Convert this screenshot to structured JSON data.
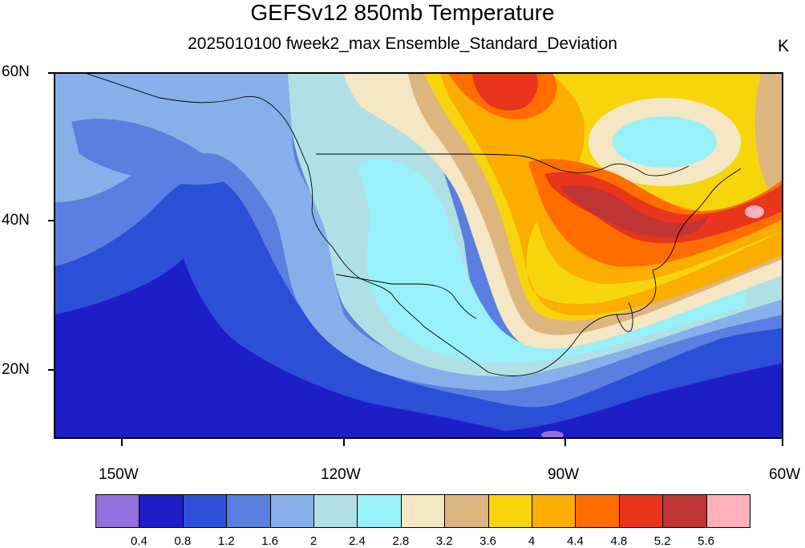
{
  "title": "GEFSv12 850mb Temperature",
  "subtitle": "2025010100 fweek2_max Ensemble_Standard_Deviation",
  "units": "K",
  "lat_labels": [
    "60N",
    "40N",
    "20N"
  ],
  "lon_labels": [
    "150W",
    "120W",
    "90W",
    "60W"
  ],
  "colorbar": {
    "colors": [
      "#9370db",
      "#1e1ec8",
      "#2c4fd8",
      "#5a7fe0",
      "#87b0ea",
      "#b0e0e6",
      "#98f0f8",
      "#f5e6c4",
      "#ddb57f",
      "#f7d50c",
      "#fbad00",
      "#ff6d00",
      "#e8351c",
      "#c03434",
      "#ffb0b8"
    ],
    "labels": [
      "0.4",
      "0.8",
      "1.2",
      "1.6",
      "2",
      "2.4",
      "2.8",
      "3.2",
      "3.6",
      "4",
      "4.4",
      "4.8",
      "5.2",
      "5.6"
    ]
  },
  "chart_data": {
    "type": "heatmap",
    "title": "GEFSv12 850mb Temperature",
    "subtitle": "2025010100 fweek2_max Ensemble_Standard_Deviation",
    "units": "K",
    "lon_range": [
      -160,
      -60
    ],
    "lat_range": [
      10,
      60
    ],
    "contour_levels": [
      0.4,
      0.8,
      1.2,
      1.6,
      2,
      2.4,
      2.8,
      3.2,
      3.6,
      4,
      4.4,
      4.8,
      5.2,
      5.6
    ]
  }
}
